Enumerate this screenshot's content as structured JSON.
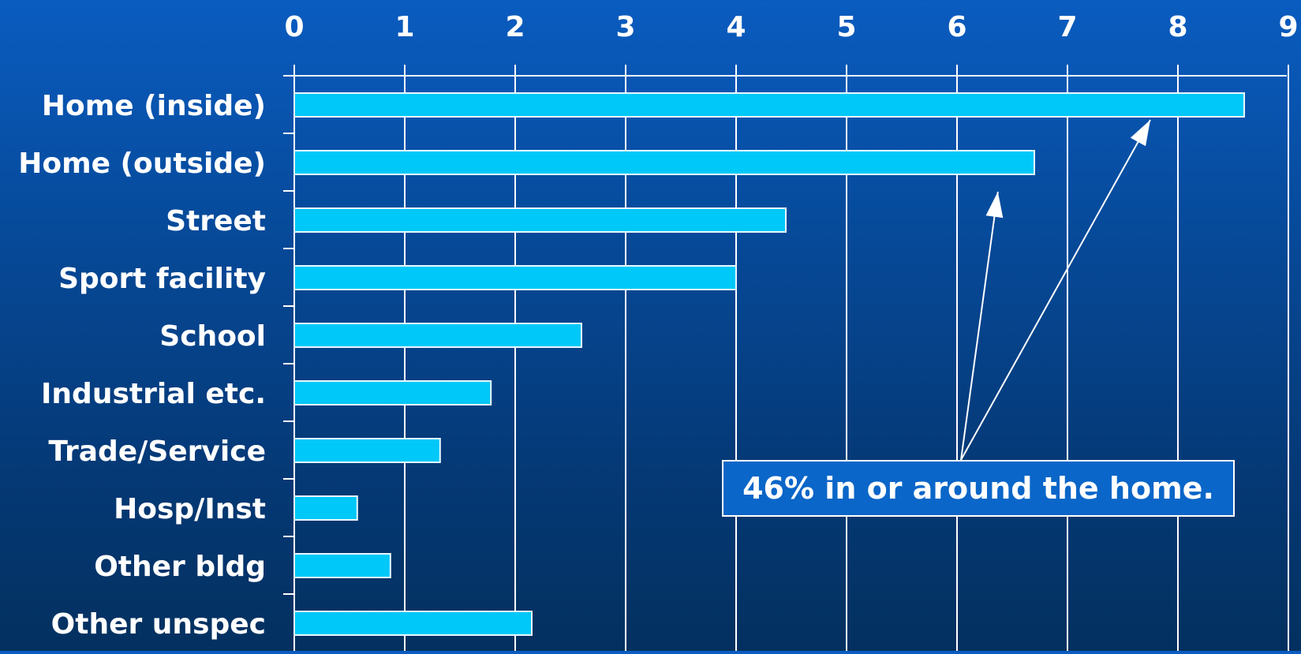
{
  "chart_data": {
    "type": "bar",
    "orientation": "horizontal",
    "categories": [
      "Home (inside)",
      "Home (outside)",
      "Street",
      "Sport facility",
      "School",
      "Industrial etc.",
      "Trade/Service",
      "Hosp/Inst",
      "Other bldg",
      "Other unspec"
    ],
    "values": [
      8.6,
      6.7,
      4.45,
      4.0,
      2.6,
      1.78,
      1.32,
      0.57,
      0.87,
      2.15
    ],
    "xlim": [
      0,
      9
    ],
    "xticks": [
      "0",
      "1",
      "2",
      "3",
      "4",
      "5",
      "6",
      "7",
      "8",
      "9"
    ],
    "x_axis_position": "top",
    "grid": true,
    "colors": {
      "bar": "#00c8f8",
      "bar_edge": "#e8f8ff",
      "grid": "#ffffff",
      "callout_bg": "#0a66c8"
    },
    "annotation": {
      "text": "46% in or around the home.",
      "targets": [
        "Home (inside)",
        "Home (outside)"
      ]
    }
  }
}
